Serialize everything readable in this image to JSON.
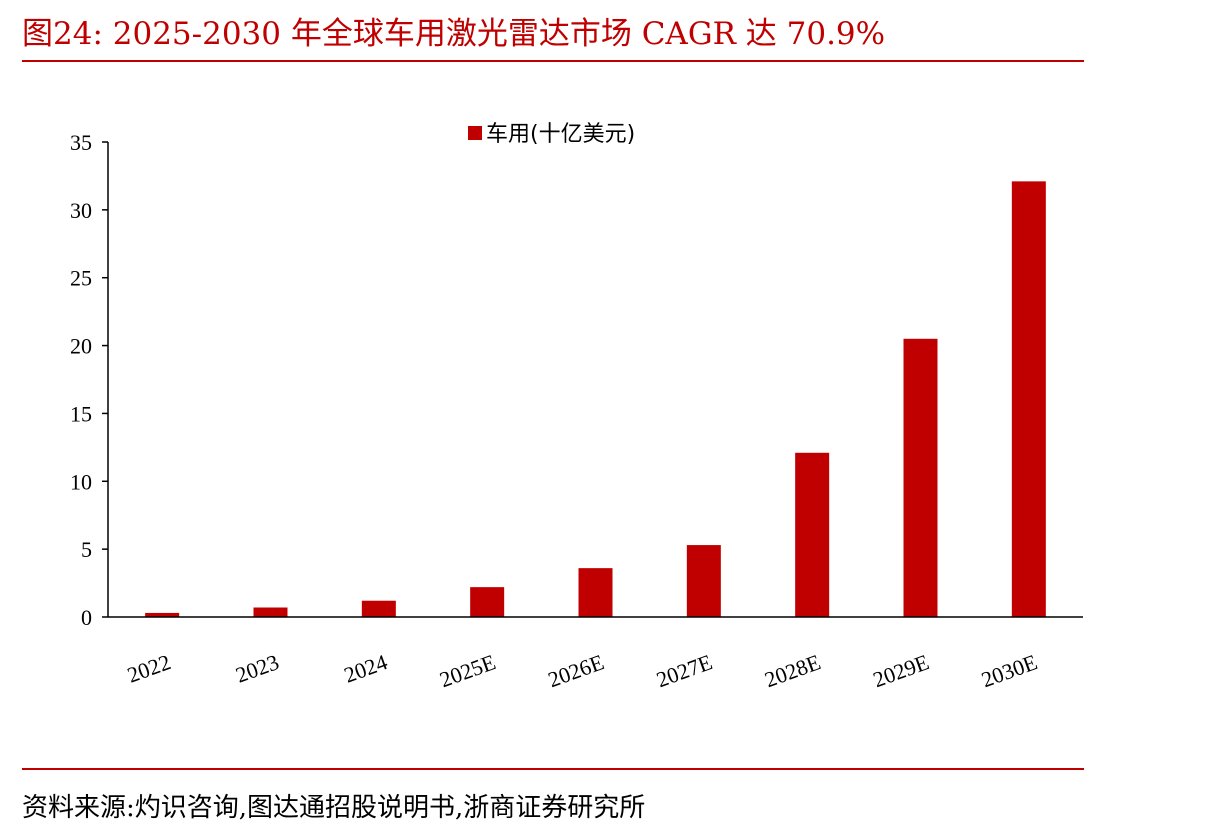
{
  "header": {
    "figure_title": "图24:  2025-2030 年全球车用激光雷达市场 CAGR 达 70.9%"
  },
  "footer": {
    "source": "资料来源:灼识咨询,图达通招股说明书,浙商证券研究所"
  },
  "colors": {
    "accent": "#c00000",
    "bar": "#c00000",
    "axis": "#000000"
  },
  "chart_data": {
    "type": "bar",
    "categories": [
      "2022",
      "2023",
      "2024",
      "2025E",
      "2026E",
      "2027E",
      "2028E",
      "2029E",
      "2030E"
    ],
    "series": [
      {
        "name": "车用(十亿美元)",
        "values": [
          0.3,
          0.7,
          1.2,
          2.2,
          3.6,
          5.3,
          12.1,
          20.5,
          32.1
        ]
      }
    ],
    "ylim": [
      0,
      35
    ],
    "yticks": [
      0,
      5,
      10,
      15,
      20,
      25,
      30,
      35
    ],
    "legend_position": "top-center",
    "grid": false
  }
}
